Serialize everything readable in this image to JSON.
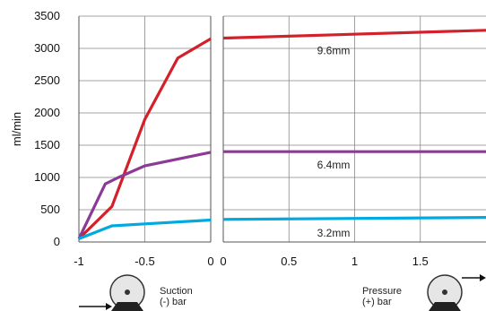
{
  "chart_data": {
    "type": "line",
    "ylabel": "ml/min",
    "ylim": [
      0,
      3500
    ],
    "yticks": [
      0,
      500,
      1000,
      1500,
      2000,
      2500,
      3000,
      3500
    ],
    "ytick_labels": [
      "0",
      "500",
      "1000",
      "1500",
      "2000",
      "2500",
      "3000",
      "3500"
    ],
    "grid": true,
    "colors": {
      "9.6mm": "#d3202a",
      "6.4mm": "#8b3a96",
      "3.2mm": "#00a9e0",
      "grid": "#888888",
      "axis": "#555555"
    },
    "panels": [
      {
        "name": "suction",
        "xlim": [
          -1,
          0
        ],
        "xticks": [
          -1,
          -0.5,
          0
        ],
        "xtick_labels": [
          "-1",
          "-0.5",
          "0"
        ],
        "caption_lines": [
          "Suction",
          "(-) bar"
        ],
        "series": [
          {
            "name": "9.6mm",
            "x": [
              -1,
              -0.75,
              -0.5,
              -0.25,
              0
            ],
            "y": [
              50,
              550,
              1900,
              2850,
              3150
            ]
          },
          {
            "name": "6.4mm",
            "x": [
              -1,
              -0.8,
              -0.7,
              -0.5,
              0
            ],
            "y": [
              50,
              900,
              1000,
              1180,
              1390
            ]
          },
          {
            "name": "3.2mm",
            "x": [
              -1,
              -0.75,
              -0.5,
              0
            ],
            "y": [
              50,
              250,
              280,
              340
            ]
          }
        ]
      },
      {
        "name": "pressure",
        "xlim": [
          0,
          2
        ],
        "xticks": [
          0,
          0.5,
          1,
          1.5
        ],
        "xtick_labels": [
          "0",
          "0.5",
          "1",
          "1.5"
        ],
        "caption_lines": [
          "Pressure",
          "(+) bar"
        ],
        "series": [
          {
            "name": "9.6mm",
            "x": [
              0,
              2
            ],
            "y": [
              3160,
              3280
            ],
            "label": "9.6mm"
          },
          {
            "name": "6.4mm",
            "x": [
              0,
              2
            ],
            "y": [
              1400,
              1400
            ],
            "label": "6.4mm"
          },
          {
            "name": "3.2mm",
            "x": [
              0,
              2
            ],
            "y": [
              350,
              380
            ],
            "label": "3.2mm"
          }
        ]
      }
    ]
  }
}
